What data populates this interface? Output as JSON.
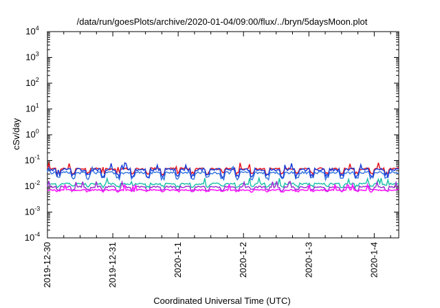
{
  "chart_data": {
    "type": "line",
    "title": "/data/run/goesPlots/archive/2020-01-04/09:00/flux/../bryn/5daysMoon.plot",
    "xlabel": "Coordinated Universal Time (UTC)",
    "ylabel": "cSv/day",
    "x_range": [
      "2019-12-30",
      "2020-01-04 09:00"
    ],
    "x_tick_labels": [
      "2019-12-30",
      "2019-12-31",
      "2020-1-1",
      "2020-1-2",
      "2020-1-3",
      "2020-1-4"
    ],
    "y_scale": "log",
    "ylim": [
      0.0001,
      10000
    ],
    "y_ticks": [
      {
        "base": "10",
        "exp": "4"
      },
      {
        "base": "10",
        "exp": "3"
      },
      {
        "base": "10",
        "exp": "2"
      },
      {
        "base": "10",
        "exp": "1"
      },
      {
        "base": "10",
        "exp": "0"
      },
      {
        "base": "10",
        "exp": "-1"
      },
      {
        "base": "10",
        "exp": "-2"
      },
      {
        "base": "10",
        "exp": "-3"
      },
      {
        "base": "10",
        "exp": "-4"
      }
    ],
    "grid": false,
    "legend": "none",
    "series": [
      {
        "color": "#e8141b",
        "base": 0.048,
        "dip": 0.032,
        "noise": 0.18
      },
      {
        "color": "#3a78e0",
        "base": 0.034,
        "dip": 0.021,
        "noise": 0.22
      },
      {
        "color": "#1a3fd8",
        "base": 0.045,
        "dip": 0.026,
        "noise": 0.25
      },
      {
        "color": "#20c2a8",
        "base": 0.0125,
        "dip": 0.01,
        "noise": 0.15
      },
      {
        "color": "#9b2fd0",
        "base": 0.0095,
        "dip": 0.007,
        "noise": 0.15
      },
      {
        "color": "#ff18ff",
        "base": 0.0072,
        "dip": 0.0065,
        "noise": 0.12
      }
    ]
  }
}
